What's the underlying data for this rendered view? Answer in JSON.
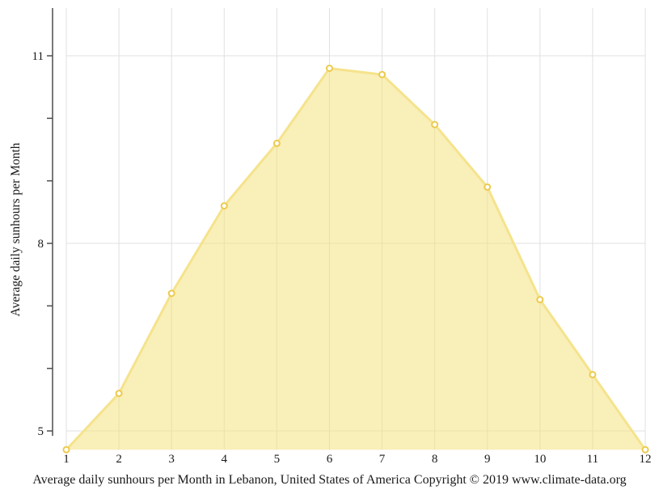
{
  "chart_data": {
    "type": "area",
    "title": "",
    "xlabel": "Average daily sunhours per Month in Lebanon, United States of America Copyright © 2019 www.climate-data.org",
    "ylabel": "Average daily sunhours per Month",
    "categories": [
      1,
      2,
      3,
      4,
      5,
      6,
      7,
      8,
      9,
      10,
      11,
      12
    ],
    "series": [
      {
        "name": "Average daily sunhours",
        "values": [
          4.7,
          5.6,
          7.2,
          8.6,
          9.6,
          10.8,
          10.7,
          9.9,
          8.9,
          7.1,
          5.9,
          4.7
        ]
      }
    ],
    "y_axis": {
      "labeled_ticks": [
        5,
        8,
        11
      ],
      "minor_ticks": [
        5,
        6,
        7,
        8,
        9,
        10,
        11
      ],
      "range_min": 4.7,
      "range_max": 11.7
    },
    "grid": {
      "vertical_per_month": true,
      "horizontal_at_labeled_ticks": true
    },
    "legend": "none",
    "colors": {
      "area_fill": "rgba(244,223,116,0.5)",
      "line": "#f5e38c",
      "marker_fill": "#ffffff",
      "marker_stroke": "#ecca4d",
      "gridline": "#e0e0e0",
      "axis": "#4d4d4d",
      "text": "#1a1a1a"
    }
  }
}
